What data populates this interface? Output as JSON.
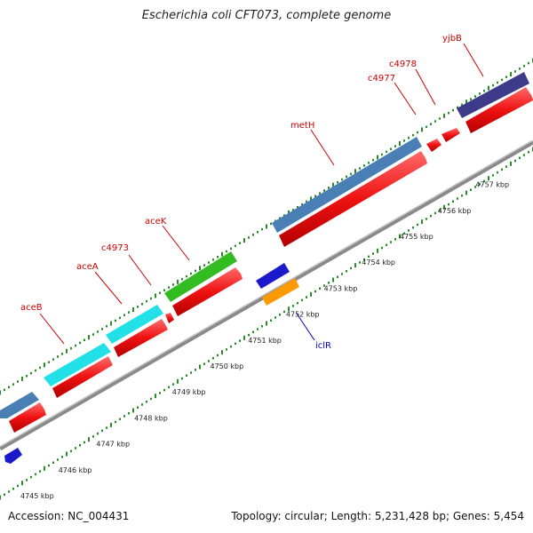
{
  "title": "Escherichia coli CFT073, complete genome",
  "footer": {
    "accession": "Accession: NC_004431",
    "summary": "Topology: circular; Length: 5,231,428 bp; Genes: 5,454"
  },
  "scale_labels": [
    "4745 kbp",
    "4746 kbp",
    "4747 kbp",
    "4748 kbp",
    "4749 kbp",
    "4750 kbp",
    "4751 kbp",
    "4752 kbp",
    "4753 kbp",
    "4754 kbp",
    "4755 kbp",
    "4756 kbp",
    "4757 kbp"
  ],
  "gene_labels": [
    {
      "name": "aceB",
      "color": "#cc0000"
    },
    {
      "name": "aceA",
      "color": "#cc0000"
    },
    {
      "name": "c4973",
      "color": "#cc0000"
    },
    {
      "name": "aceK",
      "color": "#cc0000"
    },
    {
      "name": "metH",
      "color": "#cc0000"
    },
    {
      "name": "c4977",
      "color": "#cc0000"
    },
    {
      "name": "c4978",
      "color": "#cc0000"
    },
    {
      "name": "yjbB",
      "color": "#cc0000"
    },
    {
      "name": "iclR",
      "color": "#0000cc"
    }
  ],
  "colors": {
    "cds_red": "#ee1111",
    "gene_steelblue": "#4a7fb5",
    "gene_cyan": "#22e0e8",
    "gene_green": "#33bb22",
    "gene_navy": "#3e3a8a",
    "gene_blue": "#1a1acc",
    "gene_orange": "#ff9900",
    "backbone": "#888888",
    "tick": "#2a8a2a"
  }
}
